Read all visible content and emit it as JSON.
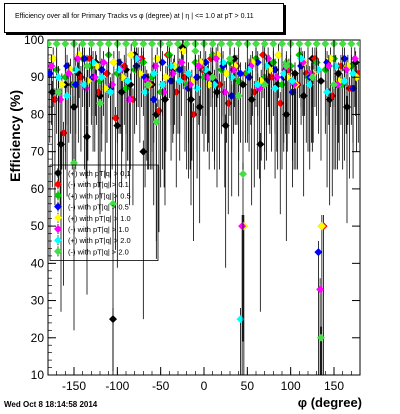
{
  "title": "Efficiency over all for Primary Tracks vs φ (degree) at |  η |  <= 1.0 at pT > 0.11",
  "footer_timestamp": "Wed Oct  8 18:14:58 2014",
  "chart_data": {
    "type": "scatter",
    "title": "Efficiency over all for Primary Tracks vs φ (degree) at |  η |  <= 1.0 at pT > 0.11",
    "xlabel": "φ (degree)",
    "ylabel": "Efficiency (%)",
    "xlim": [
      -180,
      180
    ],
    "ylim": [
      10,
      100
    ],
    "x_ticks": [
      -150,
      -100,
      -50,
      0,
      50,
      100,
      150
    ],
    "y_ticks": [
      10,
      20,
      30,
      40,
      50,
      60,
      70,
      80,
      90,
      100
    ],
    "grid": false,
    "legend_position": "middle-left",
    "legend": [
      {
        "label": "(+) with pT|q| > 0.1",
        "color": "#000000"
      },
      {
        "label": "(-) with pT|q| > 0.1",
        "color": "#ff0000"
      },
      {
        "label": "(+) with pT|q| > 0.5",
        "color": "#00cc00"
      },
      {
        "label": "(-) with pT|q| > 0.5",
        "color": "#0000ff"
      },
      {
        "label": "(+) with pT|q| > 1.0",
        "color": "#ffff00"
      },
      {
        "label": "(-) with pT|q| > 1.0",
        "color": "#ff00ff"
      },
      {
        "label": "(+) with pT|q| > 2.0",
        "color": "#00ffff"
      },
      {
        "label": "(-) with pT|q| > 2.0",
        "color": "#44dd44"
      }
    ],
    "series": [
      {
        "color": "#000000",
        "points": [
          [
            -175,
            86
          ],
          [
            -165,
            72
          ],
          [
            -160,
            88
          ],
          [
            -150,
            82
          ],
          [
            -145,
            91
          ],
          [
            -135,
            74
          ],
          [
            -125,
            94
          ],
          [
            -120,
            85
          ],
          [
            -112,
            91
          ],
          [
            -105,
            25
          ],
          [
            -100,
            77
          ],
          [
            -95,
            86
          ],
          [
            -90,
            92
          ],
          [
            -85,
            88
          ],
          [
            -80,
            96
          ],
          [
            -70,
            70
          ],
          [
            -60,
            88
          ],
          [
            -55,
            80
          ],
          [
            -45,
            84
          ],
          [
            -35,
            92
          ],
          [
            -25,
            98
          ],
          [
            -15,
            84
          ],
          [
            -5,
            82
          ],
          [
            5,
            91
          ],
          [
            15,
            86
          ],
          [
            25,
            77
          ],
          [
            35,
            95
          ],
          [
            45,
            88
          ],
          [
            55,
            84
          ],
          [
            65,
            72
          ],
          [
            75,
            93
          ],
          [
            85,
            88
          ],
          [
            95,
            80
          ],
          [
            105,
            91
          ],
          [
            115,
            85
          ],
          [
            125,
            95
          ],
          [
            135,
            89
          ],
          [
            145,
            84
          ],
          [
            155,
            91
          ],
          [
            165,
            82
          ],
          [
            175,
            94
          ]
        ]
      },
      {
        "color": "#ff0000",
        "points": [
          [
            -172,
            84
          ],
          [
            -162,
            75
          ],
          [
            -152,
            88
          ],
          [
            -142,
            90
          ],
          [
            -132,
            95
          ],
          [
            -122,
            86
          ],
          [
            -112,
            91
          ],
          [
            -102,
            79
          ],
          [
            -92,
            93
          ],
          [
            -82,
            84
          ],
          [
            -72,
            95
          ],
          [
            -62,
            88
          ],
          [
            -52,
            81
          ],
          [
            -42,
            96
          ],
          [
            -32,
            86
          ],
          [
            -22,
            90
          ],
          [
            -12,
            80
          ],
          [
            -2,
            92
          ],
          [
            8,
            95
          ],
          [
            18,
            88
          ],
          [
            28,
            83
          ],
          [
            38,
            93
          ],
          [
            48,
            91
          ],
          [
            58,
            86
          ],
          [
            68,
            96
          ],
          [
            78,
            90
          ],
          [
            88,
            83
          ],
          [
            98,
            92
          ],
          [
            108,
            88
          ],
          [
            118,
            91
          ],
          [
            128,
            95
          ],
          [
            138,
            50
          ],
          [
            148,
            85
          ],
          [
            158,
            93
          ],
          [
            168,
            87
          ],
          [
            178,
            91
          ]
        ]
      },
      {
        "color": "#00cc00",
        "points": [
          [
            -170,
            92
          ],
          [
            -160,
            90
          ],
          [
            -150,
            88
          ],
          [
            -140,
            95
          ],
          [
            -130,
            93
          ],
          [
            -120,
            89
          ],
          [
            -110,
            96
          ],
          [
            -100,
            91
          ],
          [
            -90,
            87
          ],
          [
            -80,
            92
          ],
          [
            -70,
            94
          ],
          [
            -60,
            90
          ],
          [
            -50,
            86
          ],
          [
            -40,
            96
          ],
          [
            -30,
            92
          ],
          [
            -20,
            88
          ],
          [
            -10,
            94
          ],
          [
            0,
            90
          ],
          [
            10,
            96
          ],
          [
            20,
            92
          ],
          [
            30,
            94
          ],
          [
            40,
            89
          ],
          [
            50,
            91
          ],
          [
            60,
            95
          ],
          [
            70,
            90
          ],
          [
            80,
            94
          ],
          [
            90,
            88
          ],
          [
            100,
            93
          ],
          [
            110,
            96
          ],
          [
            120,
            90
          ],
          [
            130,
            94
          ],
          [
            140,
            92
          ],
          [
            150,
            95
          ],
          [
            160,
            88
          ],
          [
            170,
            93
          ]
        ]
      },
      {
        "color": "#0000ff",
        "points": [
          [
            -178,
            91
          ],
          [
            -168,
            86
          ],
          [
            -158,
            93
          ],
          [
            -148,
            88
          ],
          [
            -138,
            95
          ],
          [
            -128,
            90
          ],
          [
            -118,
            92
          ],
          [
            -108,
            87
          ],
          [
            -98,
            94
          ],
          [
            -88,
            89
          ],
          [
            -78,
            93
          ],
          [
            -68,
            90
          ],
          [
            -58,
            84
          ],
          [
            -48,
            94
          ],
          [
            -38,
            89
          ],
          [
            -28,
            92
          ],
          [
            -18,
            87
          ],
          [
            -8,
            90
          ],
          [
            2,
            94
          ],
          [
            12,
            89
          ],
          [
            22,
            93
          ],
          [
            32,
            85
          ],
          [
            42,
            91
          ],
          [
            52,
            90
          ],
          [
            62,
            94
          ],
          [
            72,
            89
          ],
          [
            82,
            92
          ],
          [
            92,
            90
          ],
          [
            102,
            86
          ],
          [
            112,
            93
          ],
          [
            122,
            90
          ],
          [
            132,
            43
          ],
          [
            142,
            94
          ],
          [
            152,
            88
          ],
          [
            162,
            95
          ],
          [
            172,
            87
          ]
        ]
      },
      {
        "color": "#ffff00",
        "points": [
          [
            -174,
            95
          ],
          [
            -164,
            88
          ],
          [
            -154,
            92
          ],
          [
            -144,
            96
          ],
          [
            -134,
            89
          ],
          [
            -124,
            93
          ],
          [
            -114,
            87
          ],
          [
            -104,
            94
          ],
          [
            -94,
            90
          ],
          [
            -84,
            96
          ],
          [
            -74,
            91
          ],
          [
            -64,
            88
          ],
          [
            -54,
            95
          ],
          [
            -44,
            90
          ],
          [
            -34,
            93
          ],
          [
            -24,
            97
          ],
          [
            -14,
            89
          ],
          [
            -4,
            94
          ],
          [
            6,
            88
          ],
          [
            16,
            96
          ],
          [
            26,
            91
          ],
          [
            36,
            93
          ],
          [
            46,
            50
          ],
          [
            56,
            94
          ],
          [
            66,
            89
          ],
          [
            76,
            92
          ],
          [
            86,
            96
          ],
          [
            96,
            90
          ],
          [
            106,
            88
          ],
          [
            116,
            94
          ],
          [
            126,
            91
          ],
          [
            136,
            50
          ],
          [
            146,
            95
          ],
          [
            156,
            89
          ],
          [
            166,
            93
          ],
          [
            176,
            90
          ]
        ]
      },
      {
        "color": "#ff00ff",
        "points": [
          [
            -176,
            93
          ],
          [
            -166,
            84
          ],
          [
            -156,
            91
          ],
          [
            -146,
            95
          ],
          [
            -136,
            87
          ],
          [
            -126,
            90
          ],
          [
            -116,
            94
          ],
          [
            -106,
            88
          ],
          [
            -96,
            92
          ],
          [
            -86,
            84
          ],
          [
            -76,
            95
          ],
          [
            -66,
            89
          ],
          [
            -56,
            93
          ],
          [
            -46,
            86
          ],
          [
            -36,
            91
          ],
          [
            -26,
            94
          ],
          [
            -16,
            88
          ],
          [
            -6,
            93
          ],
          [
            4,
            90
          ],
          [
            14,
            95
          ],
          [
            24,
            86
          ],
          [
            34,
            92
          ],
          [
            44,
            50
          ],
          [
            54,
            93
          ],
          [
            64,
            87
          ],
          [
            74,
            95
          ],
          [
            84,
            90
          ],
          [
            94,
            92
          ],
          [
            104,
            88
          ],
          [
            114,
            94
          ],
          [
            124,
            91
          ],
          [
            134,
            33
          ],
          [
            144,
            93
          ],
          [
            154,
            88
          ],
          [
            164,
            92
          ],
          [
            174,
            95
          ]
        ]
      },
      {
        "color": "#00ffff",
        "points": [
          [
            -168,
            90
          ],
          [
            -158,
            85
          ],
          [
            -148,
            92
          ],
          [
            -138,
            88
          ],
          [
            -128,
            94
          ],
          [
            -118,
            90
          ],
          [
            -108,
            86
          ],
          [
            -98,
            92
          ],
          [
            -88,
            89
          ],
          [
            -78,
            95
          ],
          [
            -68,
            86
          ],
          [
            -58,
            91
          ],
          [
            -48,
            88
          ],
          [
            -38,
            93
          ],
          [
            -28,
            89
          ],
          [
            -18,
            91
          ],
          [
            -8,
            87
          ],
          [
            2,
            92
          ],
          [
            12,
            88
          ],
          [
            22,
            94
          ],
          [
            32,
            90
          ],
          [
            42,
            25
          ],
          [
            52,
            92
          ],
          [
            62,
            88
          ],
          [
            72,
            93
          ],
          [
            82,
            87
          ],
          [
            92,
            91
          ],
          [
            102,
            89
          ],
          [
            112,
            95
          ],
          [
            122,
            88
          ],
          [
            132,
            92
          ],
          [
            142,
            86
          ],
          [
            152,
            93
          ],
          [
            162,
            89
          ],
          [
            172,
            91
          ]
        ]
      },
      {
        "color": "#44dd44",
        "points": [
          [
            -180,
            99
          ],
          [
            -170,
            99
          ],
          [
            -160,
            99
          ],
          [
            -150,
            99
          ],
          [
            -140,
            99
          ],
          [
            -130,
            99
          ],
          [
            -120,
            99
          ],
          [
            -110,
            99
          ],
          [
            -100,
            99
          ],
          [
            -90,
            99
          ],
          [
            -80,
            99
          ],
          [
            -70,
            99
          ],
          [
            -60,
            99
          ],
          [
            -50,
            99
          ],
          [
            -40,
            99
          ],
          [
            -30,
            99
          ],
          [
            -20,
            99
          ],
          [
            -10,
            99
          ],
          [
            0,
            99
          ],
          [
            10,
            99
          ],
          [
            20,
            99
          ],
          [
            30,
            99
          ],
          [
            40,
            99
          ],
          [
            50,
            99
          ],
          [
            60,
            99
          ],
          [
            70,
            99
          ],
          [
            80,
            99
          ],
          [
            90,
            99
          ],
          [
            100,
            99
          ],
          [
            110,
            99
          ],
          [
            120,
            99
          ],
          [
            130,
            99
          ],
          [
            140,
            99
          ],
          [
            150,
            99
          ],
          [
            160,
            99
          ],
          [
            170,
            99
          ],
          [
            180,
            99
          ],
          [
            -168,
            86
          ],
          [
            -135,
            93
          ],
          [
            -120,
            83
          ],
          [
            -55,
            78
          ],
          [
            -10,
            97
          ],
          [
            30,
            95
          ],
          [
            70,
            88
          ],
          [
            95,
            94
          ],
          [
            125,
            90
          ],
          [
            135,
            20
          ],
          [
            150,
            88
          ],
          [
            45,
            64
          ],
          [
            -105,
            56
          ],
          [
            40,
            85
          ],
          [
            95,
            93
          ],
          [
            -150,
            67
          ],
          [
            10,
            90
          ],
          [
            -65,
            88
          ]
        ]
      }
    ]
  }
}
